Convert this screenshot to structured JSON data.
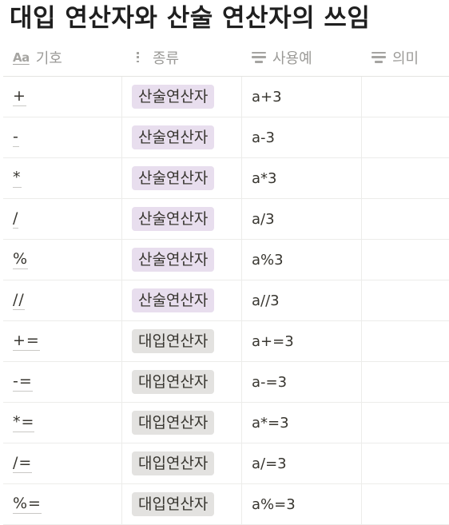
{
  "title": "대입 연산자와 산술 연산자의 쓰임",
  "colors": {
    "arith_tag": "#e8deee",
    "assign_tag": "#e3e2e0",
    "header_text": "#9b9a97"
  },
  "columns": [
    {
      "label": "기호",
      "icon": "text-aa-icon"
    },
    {
      "label": "종류",
      "icon": "list-icon"
    },
    {
      "label": "사용예",
      "icon": "text-lines-icon"
    },
    {
      "label": "의미",
      "icon": "text-lines-icon"
    }
  ],
  "aa_glyph": "Aa",
  "rows": [
    {
      "symbol": "+",
      "kind": "산술연산자",
      "kind_type": "arith",
      "example": "a+3",
      "meaning": ""
    },
    {
      "symbol": "-",
      "kind": "산술연산자",
      "kind_type": "arith",
      "example": "a-3",
      "meaning": ""
    },
    {
      "symbol": "*",
      "kind": "산술연산자",
      "kind_type": "arith",
      "example": "a*3",
      "meaning": ""
    },
    {
      "symbol": "/",
      "kind": "산술연산자",
      "kind_type": "arith",
      "example": "a/3",
      "meaning": ""
    },
    {
      "symbol": "%",
      "kind": "산술연산자",
      "kind_type": "arith",
      "example": "a%3",
      "meaning": ""
    },
    {
      "symbol": "//",
      "kind": "산술연산자",
      "kind_type": "arith",
      "example": "a//3",
      "meaning": ""
    },
    {
      "symbol": "+=",
      "kind": "대입연산자",
      "kind_type": "assign",
      "example": "a+=3",
      "meaning": ""
    },
    {
      "symbol": "-=",
      "kind": "대입연산자",
      "kind_type": "assign",
      "example": "a-=3",
      "meaning": ""
    },
    {
      "symbol": "*=",
      "kind": "대입연산자",
      "kind_type": "assign",
      "example": "a*=3",
      "meaning": ""
    },
    {
      "symbol": "/=",
      "kind": "대입연산자",
      "kind_type": "assign",
      "example": "a/=3",
      "meaning": ""
    },
    {
      "symbol": "%=",
      "kind": "대입연산자",
      "kind_type": "assign",
      "example": "a%=3",
      "meaning": ""
    }
  ]
}
